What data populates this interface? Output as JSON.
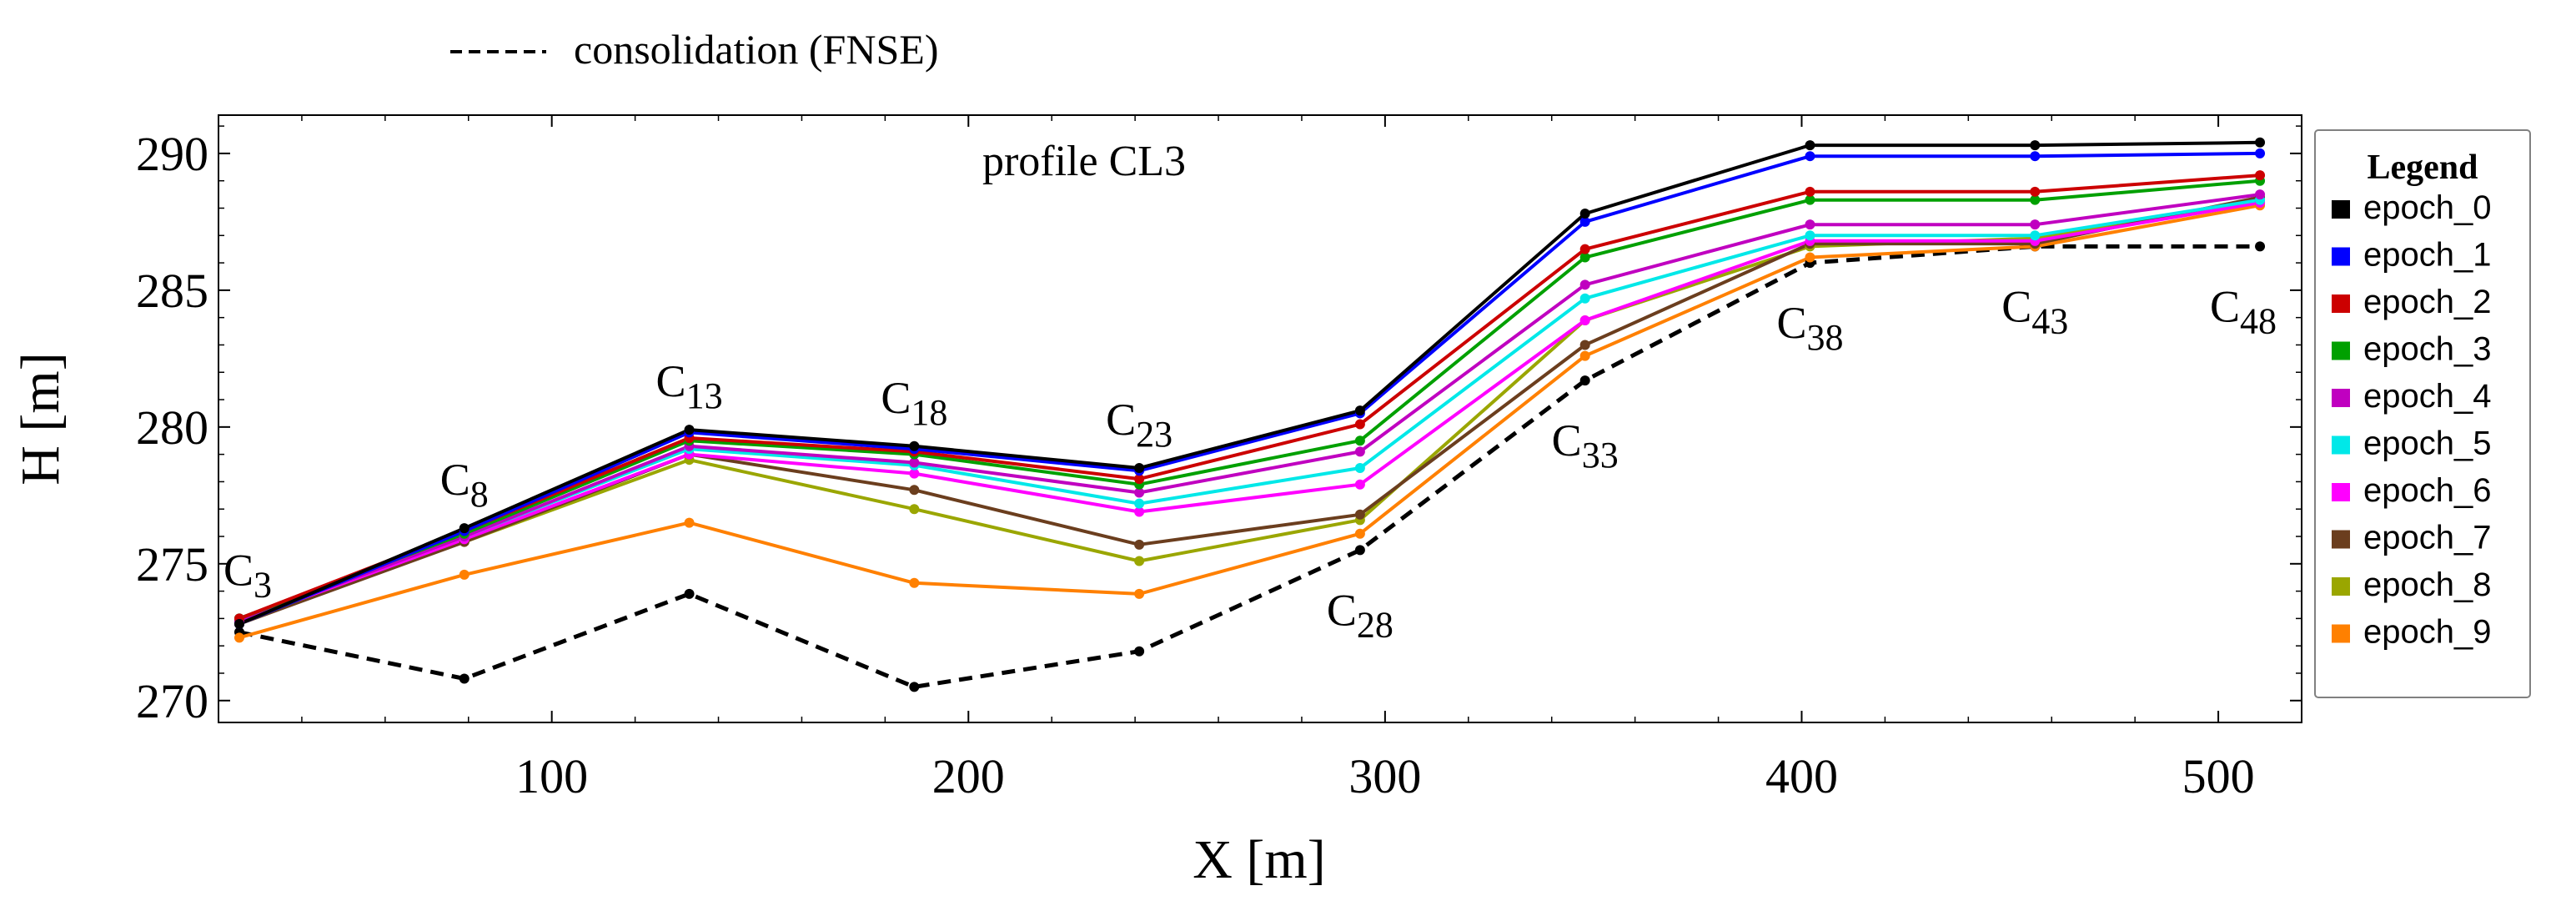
{
  "chart_data": {
    "type": "line",
    "title": "profile CL3",
    "xlabel": "X [m]",
    "ylabel": "H [m]",
    "xlim": [
      20,
      520
    ],
    "ylim": [
      269.2,
      291.4
    ],
    "xticks": [
      100,
      200,
      300,
      400,
      500
    ],
    "yticks": [
      270,
      275,
      280,
      285,
      290
    ],
    "grid": false,
    "x": [
      25,
      79,
      133,
      187,
      241,
      294,
      348,
      402,
      456,
      510
    ],
    "series": [
      {
        "name": "epoch_0",
        "color": "#000000",
        "values": [
          272.8,
          276.3,
          279.9,
          279.3,
          278.5,
          280.6,
          287.8,
          290.3,
          290.3,
          290.4
        ]
      },
      {
        "name": "epoch_1",
        "color": "#0000ff",
        "values": [
          272.8,
          276.2,
          279.8,
          279.2,
          278.4,
          280.5,
          287.5,
          289.9,
          289.9,
          290.0
        ]
      },
      {
        "name": "epoch_2",
        "color": "#cc0000",
        "values": [
          273.0,
          276.2,
          279.6,
          279.1,
          278.1,
          280.1,
          286.5,
          288.6,
          288.6,
          289.2
        ]
      },
      {
        "name": "epoch_3",
        "color": "#00a000",
        "values": [
          273.0,
          276.1,
          279.5,
          279.0,
          277.9,
          279.5,
          286.2,
          288.3,
          288.3,
          289.0
        ]
      },
      {
        "name": "epoch_4",
        "color": "#c000c0",
        "values": [
          272.9,
          276.0,
          279.3,
          278.7,
          277.6,
          279.1,
          285.2,
          287.4,
          287.4,
          288.5
        ]
      },
      {
        "name": "epoch_5",
        "color": "#00e8e8",
        "values": [
          273.0,
          276.0,
          279.2,
          278.6,
          277.2,
          278.5,
          284.7,
          287.0,
          287.0,
          288.3
        ]
      },
      {
        "name": "epoch_6",
        "color": "#ff00ff",
        "values": [
          272.9,
          275.9,
          279.0,
          278.3,
          276.9,
          277.9,
          283.9,
          286.8,
          286.8,
          288.2
        ]
      },
      {
        "name": "epoch_7",
        "color": "#6b3e1e",
        "values": [
          272.8,
          275.8,
          279.0,
          277.7,
          275.7,
          276.8,
          283.0,
          286.7,
          286.7,
          288.4
        ]
      },
      {
        "name": "epoch_8",
        "color": "#9aa600",
        "values": [
          272.9,
          275.8,
          278.8,
          277.0,
          275.1,
          276.6,
          283.9,
          286.6,
          286.9,
          288.2
        ]
      },
      {
        "name": "epoch_9",
        "color": "#ff8000",
        "values": [
          272.3,
          274.6,
          276.5,
          274.3,
          273.9,
          276.1,
          282.6,
          286.2,
          286.6,
          288.1
        ]
      },
      {
        "name": "consolidation (FNSE)",
        "color": "#000000",
        "dashed": true,
        "values": [
          272.5,
          270.8,
          273.9,
          270.5,
          271.8,
          275.5,
          281.7,
          286.0,
          286.6,
          286.6
        ]
      }
    ],
    "point_labels": [
      {
        "base": "C",
        "sub": "3",
        "x": 25,
        "placement": "above"
      },
      {
        "base": "C",
        "sub": "8",
        "x": 79,
        "placement": "above"
      },
      {
        "base": "C",
        "sub": "13",
        "x": 133,
        "placement": "above"
      },
      {
        "base": "C",
        "sub": "18",
        "x": 187,
        "placement": "above"
      },
      {
        "base": "C",
        "sub": "23",
        "x": 241,
        "placement": "above"
      },
      {
        "base": "C",
        "sub": "28",
        "x": 294,
        "placement": "below"
      },
      {
        "base": "C",
        "sub": "33",
        "x": 348,
        "placement": "below"
      },
      {
        "base": "C",
        "sub": "38",
        "x": 402,
        "placement": "below"
      },
      {
        "base": "C",
        "sub": "43",
        "x": 456,
        "placement": "below"
      },
      {
        "base": "C",
        "sub": "48",
        "x": 510,
        "placement": "below"
      }
    ],
    "legend": {
      "title": "Legend",
      "placement": "right"
    },
    "dashed_legend_label": "consolidation (FNSE)"
  }
}
